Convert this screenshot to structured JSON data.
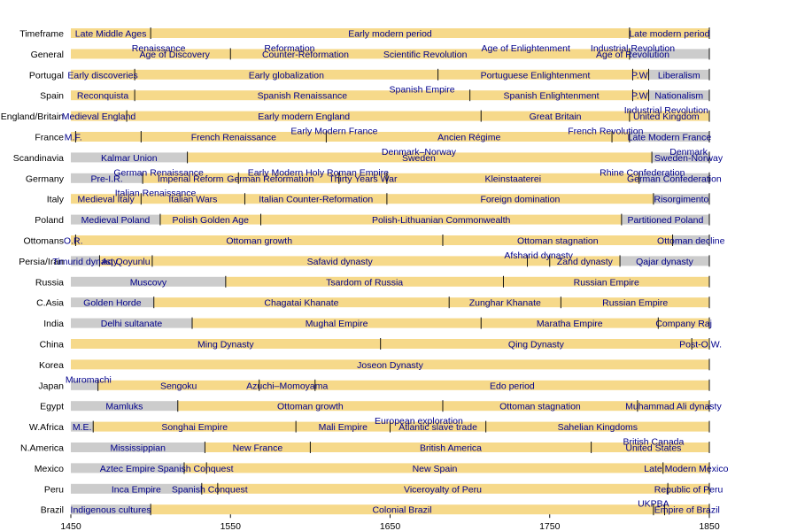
{
  "chart_data": {
    "type": "timeline",
    "title": "",
    "xlabel": "",
    "ylabel": "",
    "xlim": [
      1450,
      1850
    ],
    "xticks": [
      1450,
      1550,
      1650,
      1750,
      1850
    ],
    "colors": {
      "grey": "#cccccc",
      "gold": "#f6d98a",
      "divider": "#111111",
      "text": "#00008b"
    },
    "rows": [
      {
        "label": "Timeframe",
        "periods": [
          {
            "name": "Late Middle Ages",
            "start": 1450,
            "end": 1500,
            "color": "gold"
          },
          {
            "name": "Early modern period",
            "start": 1500,
            "end": 1800,
            "color": "gold"
          },
          {
            "name": "Late modern period",
            "start": 1800,
            "end": 1850,
            "color": "gold"
          }
        ]
      },
      {
        "label": "General",
        "periods": [
          {
            "name": "",
            "start": 1450,
            "end": 1550,
            "color": "gold"
          },
          {
            "name": "",
            "start": 1550,
            "end": 1800,
            "color": "gold"
          },
          {
            "name": "",
            "start": 1800,
            "end": 1850,
            "color": "grey"
          }
        ],
        "texts": [
          {
            "name": "Renaissance",
            "x": 1505,
            "row_offset": -0.5
          },
          {
            "name": "Age of Discovery",
            "x": 1515,
            "row_offset": 0
          },
          {
            "name": "Reformation",
            "x": 1587,
            "row_offset": -0.5
          },
          {
            "name": "Counter-Reformation",
            "x": 1597,
            "row_offset": 0
          },
          {
            "name": "Scientific Revolution",
            "x": 1672,
            "row_offset": 0
          },
          {
            "name": "Age of Enlightenment",
            "x": 1735,
            "row_offset": -0.5
          },
          {
            "name": "Industrial Revolution",
            "x": 1802,
            "row_offset": -0.5
          },
          {
            "name": "Age of Revolution",
            "x": 1802,
            "row_offset": 0
          }
        ]
      },
      {
        "label": "Portugal",
        "periods": [
          {
            "name": "Early discoveries",
            "start": 1450,
            "end": 1490,
            "color": "gold"
          },
          {
            "name": "Early globalization",
            "start": 1490,
            "end": 1680,
            "color": "gold"
          },
          {
            "name": "Portuguese Enlightenment",
            "start": 1680,
            "end": 1802,
            "color": "gold"
          },
          {
            "name": "P.W.",
            "start": 1802,
            "end": 1812,
            "color": "gold"
          },
          {
            "name": "Liberalism",
            "start": 1812,
            "end": 1850,
            "color": "grey"
          }
        ]
      },
      {
        "label": "Spain",
        "periods": [
          {
            "name": "Reconquista",
            "start": 1450,
            "end": 1490,
            "color": "gold"
          },
          {
            "name": "Spanish Renaissance",
            "start": 1490,
            "end": 1700,
            "color": "gold"
          },
          {
            "name": "Spanish Enlightenment",
            "start": 1700,
            "end": 1802,
            "color": "gold"
          },
          {
            "name": "P.W.",
            "start": 1802,
            "end": 1812,
            "color": "gold"
          },
          {
            "name": "Nationalism",
            "start": 1812,
            "end": 1850,
            "color": "grey"
          }
        ],
        "texts": [
          {
            "name": "Spanish Empire",
            "x": 1670,
            "row_offset": -0.5
          }
        ]
      },
      {
        "label": "England/Britain",
        "periods": [
          {
            "name": "Medieval England",
            "start": 1450,
            "end": 1485,
            "color": "gold"
          },
          {
            "name": "Early modern England",
            "start": 1485,
            "end": 1707,
            "color": "gold"
          },
          {
            "name": "Great Britain",
            "start": 1707,
            "end": 1800,
            "color": "gold"
          },
          {
            "name": "",
            "start": 1800,
            "end": 1850,
            "color": "gold"
          }
        ],
        "texts": [
          {
            "name": "Industrial Revolution",
            "x": 1823,
            "row_offset": -0.5
          },
          {
            "name": "United Kingdom",
            "x": 1823,
            "row_offset": 0
          }
        ]
      },
      {
        "label": "France",
        "periods": [
          {
            "name": "M.F.",
            "start": 1450,
            "end": 1453,
            "color": "gold"
          },
          {
            "name": "",
            "start": 1453,
            "end": 1494,
            "color": "gold"
          },
          {
            "name": "French Renaissance",
            "start": 1494,
            "end": 1610,
            "color": "gold"
          },
          {
            "name": "Ancien Régime",
            "start": 1610,
            "end": 1789,
            "color": "gold"
          },
          {
            "name": "",
            "start": 1789,
            "end": 1800,
            "color": "gold"
          },
          {
            "name": "Late Modern France",
            "start": 1800,
            "end": 1850,
            "color": "grey"
          }
        ],
        "texts": [
          {
            "name": "Early Modern France",
            "x": 1615,
            "row_offset": -0.5
          },
          {
            "name": "French Revolution",
            "x": 1785,
            "row_offset": -0.5
          }
        ]
      },
      {
        "label": "Scandinavia",
        "periods": [
          {
            "name": "Kalmar Union",
            "start": 1450,
            "end": 1523,
            "color": "grey"
          },
          {
            "name": "",
            "start": 1523,
            "end": 1814,
            "color": "gold"
          },
          {
            "name": "",
            "start": 1814,
            "end": 1850,
            "color": "grey"
          }
        ],
        "texts": [
          {
            "name": "Denmark–Norway",
            "x": 1668,
            "row_offset": -0.5
          },
          {
            "name": "Sweden",
            "x": 1668,
            "row_offset": 0
          },
          {
            "name": "Denmark",
            "x": 1837,
            "row_offset": -0.5
          },
          {
            "name": "Sweden-Norway",
            "x": 1837,
            "row_offset": 0
          }
        ]
      },
      {
        "label": "Germany",
        "periods": [
          {
            "name": "Pre-I.R.",
            "start": 1450,
            "end": 1495,
            "color": "grey"
          },
          {
            "name": "Imperial Reform",
            "start": 1495,
            "end": 1555,
            "color": "gold"
          },
          {
            "name": "",
            "start": 1555,
            "end": 1618,
            "color": "gold"
          },
          {
            "name": "Thirty Years War",
            "start": 1618,
            "end": 1648,
            "color": "gold"
          },
          {
            "name": "Kleinstaaterei",
            "start": 1648,
            "end": 1806,
            "color": "gold"
          },
          {
            "name": "German Confederation",
            "start": 1806,
            "end": 1850,
            "color": "grey"
          }
        ],
        "texts": [
          {
            "name": "German Renaissance",
            "x": 1505,
            "row_offset": -0.5
          },
          {
            "name": "German Reformation",
            "x": 1575,
            "row_offset": 0
          },
          {
            "name": "Early Modern Holy Roman Empire",
            "x": 1605,
            "row_offset": -0.5
          },
          {
            "name": "Rhine Confederation",
            "x": 1808,
            "row_offset": -0.5
          }
        ]
      },
      {
        "label": "Italy",
        "periods": [
          {
            "name": "Medieval Italy",
            "start": 1450,
            "end": 1494,
            "color": "gold"
          },
          {
            "name": "Italian Wars",
            "start": 1494,
            "end": 1559,
            "color": "gold"
          },
          {
            "name": "Italian Counter-Reformation",
            "start": 1559,
            "end": 1648,
            "color": "gold"
          },
          {
            "name": "Foreign domination",
            "start": 1648,
            "end": 1815,
            "color": "gold"
          },
          {
            "name": "Risorgimento",
            "start": 1815,
            "end": 1850,
            "color": "grey"
          }
        ],
        "texts": [
          {
            "name": "Italian Renaissance",
            "x": 1503,
            "row_offset": -0.5
          }
        ]
      },
      {
        "label": "Poland",
        "periods": [
          {
            "name": "Medieval Poland",
            "start": 1450,
            "end": 1506,
            "color": "grey"
          },
          {
            "name": "Polish Golden Age",
            "start": 1506,
            "end": 1569,
            "color": "gold"
          },
          {
            "name": "Polish-Lithuanian Commonwealth",
            "start": 1569,
            "end": 1795,
            "color": "gold"
          },
          {
            "name": "Partitioned Poland",
            "start": 1795,
            "end": 1850,
            "color": "grey"
          }
        ]
      },
      {
        "label": "Ottomans",
        "periods": [
          {
            "name": "O.R.",
            "start": 1450,
            "end": 1453,
            "color": "gold"
          },
          {
            "name": "Ottoman growth",
            "start": 1453,
            "end": 1683,
            "color": "gold"
          },
          {
            "name": "Ottoman stagnation",
            "start": 1683,
            "end": 1827,
            "color": "gold"
          },
          {
            "name": "Ottoman decline",
            "start": 1827,
            "end": 1850,
            "color": "grey"
          }
        ]
      },
      {
        "label": "Persia/Iran",
        "periods": [
          {
            "name": "Timurid dynasty",
            "start": 1450,
            "end": 1468,
            "color": "grey"
          },
          {
            "name": "Aq Qoyunlu",
            "start": 1468,
            "end": 1501,
            "color": "gold"
          },
          {
            "name": "Safavid dynasty",
            "start": 1501,
            "end": 1736,
            "color": "gold"
          },
          {
            "name": "",
            "start": 1736,
            "end": 1750,
            "color": "gold"
          },
          {
            "name": "Zand dynasty",
            "start": 1750,
            "end": 1794,
            "color": "gold"
          },
          {
            "name": "Qajar dynasty",
            "start": 1794,
            "end": 1850,
            "color": "grey"
          }
        ],
        "texts": [
          {
            "name": "Afsharid dynasty",
            "x": 1743,
            "row_offset": -0.5
          }
        ]
      },
      {
        "label": "Russia",
        "periods": [
          {
            "name": "Muscovy",
            "start": 1450,
            "end": 1547,
            "color": "grey"
          },
          {
            "name": "Tsardom of Russia",
            "start": 1547,
            "end": 1721,
            "color": "gold"
          },
          {
            "name": "Russian Empire",
            "start": 1721,
            "end": 1850,
            "color": "gold"
          }
        ]
      },
      {
        "label": "C.Asia",
        "periods": [
          {
            "name": "Golden Horde",
            "start": 1450,
            "end": 1502,
            "color": "grey"
          },
          {
            "name": "Chagatai Khanate",
            "start": 1502,
            "end": 1687,
            "color": "gold"
          },
          {
            "name": "Zunghar Khanate",
            "start": 1687,
            "end": 1757,
            "color": "gold"
          },
          {
            "name": "Russian Empire",
            "start": 1757,
            "end": 1850,
            "color": "gold"
          }
        ]
      },
      {
        "label": "India",
        "periods": [
          {
            "name": "Delhi sultanate",
            "start": 1450,
            "end": 1526,
            "color": "grey"
          },
          {
            "name": "Mughal Empire",
            "start": 1526,
            "end": 1707,
            "color": "gold"
          },
          {
            "name": "Maratha Empire",
            "start": 1707,
            "end": 1818,
            "color": "gold"
          },
          {
            "name": "Company Raj",
            "start": 1818,
            "end": 1850,
            "color": "gold"
          }
        ]
      },
      {
        "label": "China",
        "periods": [
          {
            "name": "Ming Dynasty",
            "start": 1450,
            "end": 1644,
            "color": "gold"
          },
          {
            "name": "Qing Dynasty",
            "start": 1644,
            "end": 1839,
            "color": "gold"
          },
          {
            "name": "Post-O.W.",
            "start": 1839,
            "end": 1850,
            "color": "gold"
          }
        ]
      },
      {
        "label": "Korea",
        "periods": [
          {
            "name": "Joseon Dynasty",
            "start": 1450,
            "end": 1850,
            "color": "gold"
          }
        ]
      },
      {
        "label": "Japan",
        "periods": [
          {
            "name": "",
            "start": 1450,
            "end": 1467,
            "color": "grey"
          },
          {
            "name": "Sengoku",
            "start": 1467,
            "end": 1568,
            "color": "gold"
          },
          {
            "name": "Azuchi–Momoyama",
            "start": 1568,
            "end": 1603,
            "color": "gold"
          },
          {
            "name": "Edo period",
            "start": 1603,
            "end": 1850,
            "color": "gold"
          }
        ],
        "texts": [
          {
            "name": "Muromachi",
            "x": 1461,
            "row_offset": -0.5
          }
        ]
      },
      {
        "label": "Egypt",
        "periods": [
          {
            "name": "Mamluks",
            "start": 1450,
            "end": 1517,
            "color": "grey"
          },
          {
            "name": "Ottoman growth",
            "start": 1517,
            "end": 1683,
            "color": "gold"
          },
          {
            "name": "Ottoman stagnation",
            "start": 1683,
            "end": 1805,
            "color": "gold"
          },
          {
            "name": "Muhammad Ali dynasty",
            "start": 1805,
            "end": 1850,
            "color": "gold"
          }
        ]
      },
      {
        "label": "W.Africa",
        "periods": [
          {
            "name": "M.E.",
            "start": 1450,
            "end": 1464,
            "color": "grey"
          },
          {
            "name": "Songhai Empire",
            "start": 1464,
            "end": 1591,
            "color": "gold"
          },
          {
            "name": "Mali Empire",
            "start": 1591,
            "end": 1650,
            "color": "gold"
          },
          {
            "name": "Atlantic slave trade",
            "start": 1650,
            "end": 1710,
            "color": "gold"
          },
          {
            "name": "Sahelian Kingdoms",
            "start": 1710,
            "end": 1850,
            "color": "gold"
          }
        ],
        "texts": [
          {
            "name": "European exploration",
            "x": 1668,
            "row_offset": -0.5
          }
        ]
      },
      {
        "label": "N.America",
        "periods": [
          {
            "name": "Mississippian",
            "start": 1450,
            "end": 1534,
            "color": "grey"
          },
          {
            "name": "New France",
            "start": 1534,
            "end": 1600,
            "color": "gold"
          },
          {
            "name": "British America",
            "start": 1600,
            "end": 1776,
            "color": "gold"
          },
          {
            "name": "",
            "start": 1776,
            "end": 1850,
            "color": "gold"
          }
        ],
        "texts": [
          {
            "name": "British Canada",
            "x": 1815,
            "row_offset": -0.5
          },
          {
            "name": "United States",
            "x": 1815,
            "row_offset": 0
          }
        ]
      },
      {
        "label": "Mexico",
        "periods": [
          {
            "name": "Aztec Empire",
            "start": 1450,
            "end": 1521,
            "color": "grey"
          },
          {
            "name": "Spanish Conquest",
            "start": 1521,
            "end": 1535,
            "color": "gold"
          },
          {
            "name": "New Spain",
            "start": 1535,
            "end": 1821,
            "color": "gold"
          },
          {
            "name": "Late Modern Mexico",
            "start": 1821,
            "end": 1850,
            "color": "gold"
          }
        ]
      },
      {
        "label": "Peru",
        "periods": [
          {
            "name": "Inca Empire",
            "start": 1450,
            "end": 1532,
            "color": "grey"
          },
          {
            "name": "Spanish Conquest",
            "start": 1532,
            "end": 1542,
            "color": "gold"
          },
          {
            "name": "Viceroyalty of Peru",
            "start": 1542,
            "end": 1824,
            "color": "gold"
          },
          {
            "name": "Republic of Peru",
            "start": 1824,
            "end": 1850,
            "color": "gold"
          }
        ]
      },
      {
        "label": "Brazil",
        "periods": [
          {
            "name": "Indigenous cultures",
            "start": 1450,
            "end": 1500,
            "color": "grey"
          },
          {
            "name": "Colonial Brazil",
            "start": 1500,
            "end": 1815,
            "color": "gold"
          },
          {
            "name": "",
            "start": 1815,
            "end": 1822,
            "color": "gold"
          },
          {
            "name": "Empire of Brazil",
            "start": 1822,
            "end": 1850,
            "color": "gold"
          }
        ],
        "texts": [
          {
            "name": "UKPBA",
            "x": 1815,
            "row_offset": -0.5
          }
        ]
      }
    ]
  }
}
